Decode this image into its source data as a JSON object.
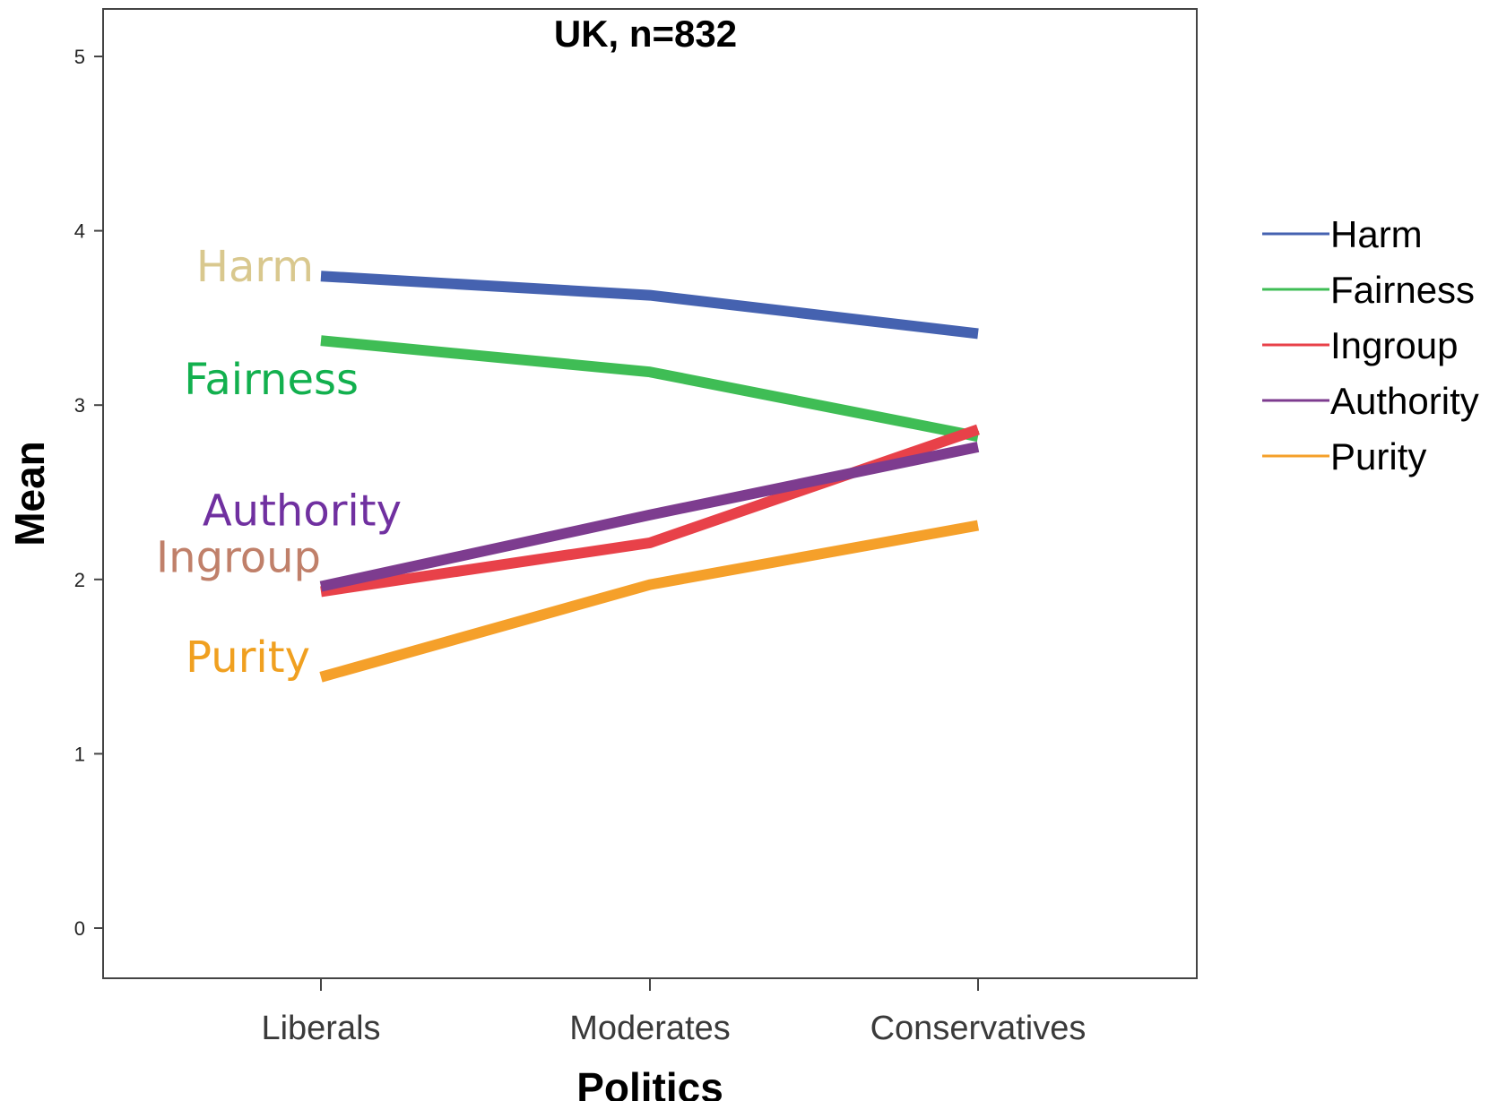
{
  "chart_data": {
    "type": "line",
    "title": "UK, n=832",
    "xlabel": "Politics",
    "ylabel": "Mean",
    "categories": [
      "Liberals",
      "Moderates",
      "Conservatives"
    ],
    "ylim": [
      -0.3,
      5.25
    ],
    "yticks": [
      0,
      1,
      2,
      3,
      4,
      5
    ],
    "grid": false,
    "legend_position": "right",
    "series": [
      {
        "name": "Harm",
        "color": "#4562b0",
        "values": [
          3.74,
          3.63,
          3.41
        ]
      },
      {
        "name": "Fairness",
        "color": "#3fbd55",
        "values": [
          3.37,
          3.19,
          2.82
        ]
      },
      {
        "name": "Ingroup",
        "color": "#e84149",
        "values": [
          1.93,
          2.21,
          2.86
        ]
      },
      {
        "name": "Authority",
        "color": "#7d3c8f",
        "values": [
          1.96,
          2.37,
          2.76
        ]
      },
      {
        "name": "Purity",
        "color": "#f5a02a",
        "values": [
          1.44,
          1.97,
          2.31
        ]
      }
    ],
    "annotations": [
      {
        "text": "Harm",
        "color": "#d9c88e",
        "series": "Harm",
        "category": "Liberals",
        "value": 3.74
      },
      {
        "text": "Fairness",
        "color": "#12b04e",
        "series": "Fairness",
        "category": "Liberals",
        "value": 3.37
      },
      {
        "text": "Authority",
        "color": "#7030a0",
        "series": "Authority",
        "category": "Liberals",
        "value": 1.96
      },
      {
        "text": "Ingroup",
        "color": "#c0806a",
        "series": "Ingroup",
        "category": "Liberals",
        "value": 1.93
      },
      {
        "text": "Purity",
        "color": "#f0a020",
        "series": "Purity",
        "category": "Liberals",
        "value": 1.44
      }
    ]
  }
}
